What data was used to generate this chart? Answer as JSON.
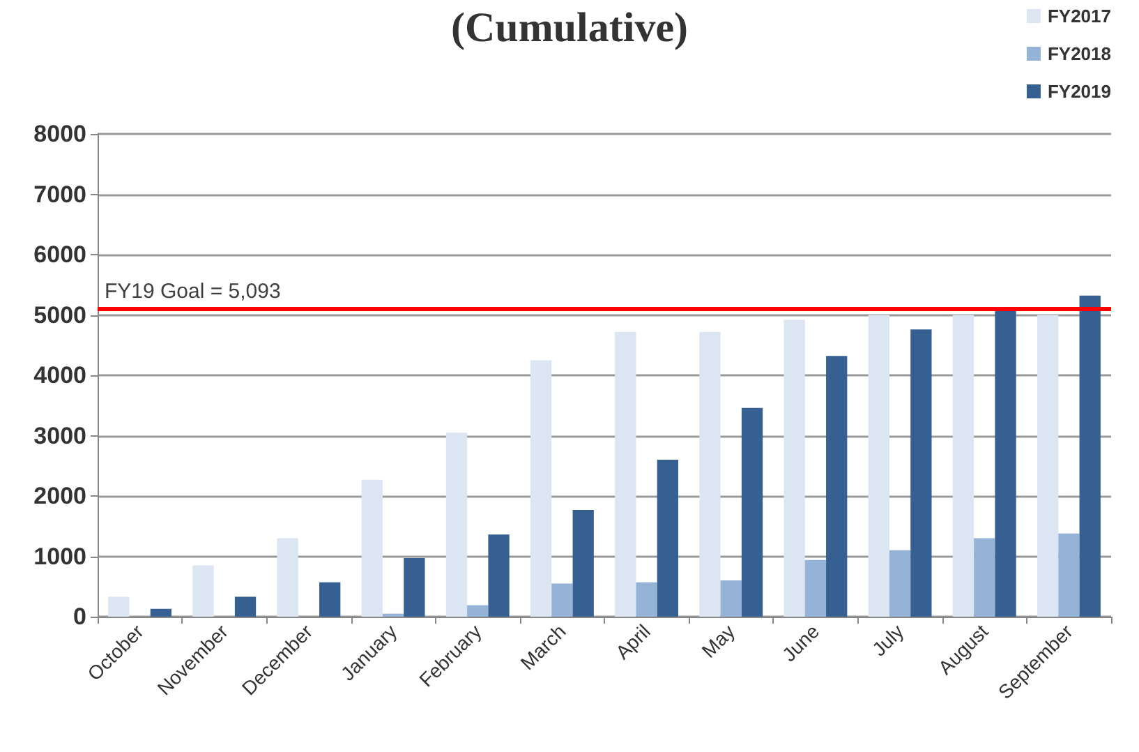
{
  "chart_data": {
    "type": "bar",
    "title": "(Cumulative)",
    "categories": [
      "October",
      "November",
      "December",
      "January",
      "February",
      "March",
      "April",
      "May",
      "June",
      "July",
      "August",
      "September"
    ],
    "series": [
      {
        "name": "FY2017",
        "color": "#dce6f2",
        "values": [
          330,
          850,
          1300,
          2270,
          3050,
          4250,
          4720,
          4720,
          4920,
          5000,
          5000,
          5000
        ]
      },
      {
        "name": "FY2018",
        "color": "#95b3d7",
        "values": [
          0,
          0,
          0,
          50,
          190,
          550,
          570,
          600,
          940,
          1100,
          1300,
          1380
        ]
      },
      {
        "name": "FY2019",
        "color": "#366092",
        "values": [
          130,
          330,
          570,
          970,
          1360,
          1770,
          2600,
          3460,
          4320,
          4760,
          5100,
          5320
        ]
      }
    ],
    "ylim": [
      0,
      8000
    ],
    "yticks": [
      0,
      1000,
      2000,
      3000,
      4000,
      5000,
      6000,
      7000,
      8000
    ],
    "grid": "y",
    "legend": "top right",
    "ref_lines": [
      {
        "axis": "y",
        "value": 5093,
        "label": "FY19 Goal = 5,093",
        "color": "#ff0000"
      }
    ]
  }
}
